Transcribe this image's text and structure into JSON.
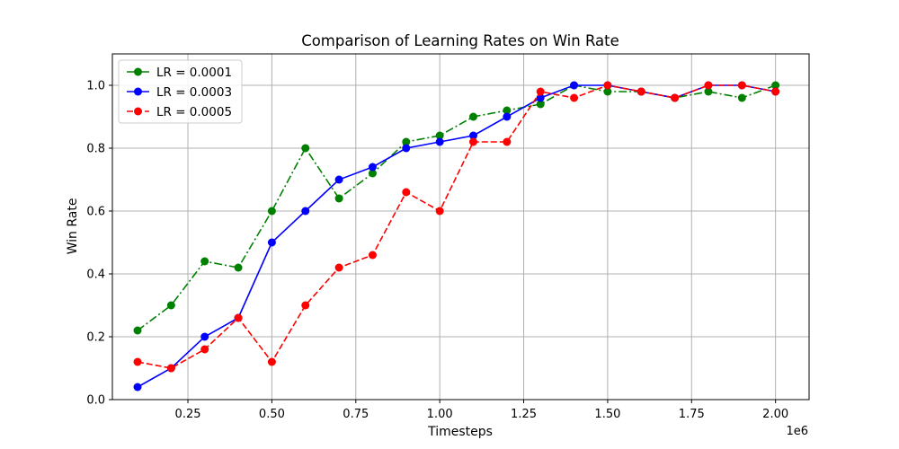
{
  "chart_data": {
    "type": "line",
    "title": "Comparison of Learning Rates on Win Rate",
    "xlabel": "Timesteps",
    "ylabel": "Win Rate",
    "x_offset_label": "1e6",
    "xlim": [
      25000,
      2100000
    ],
    "ylim": [
      0.0,
      1.1
    ],
    "grid": true,
    "legend_position": "upper-left",
    "x_ticks": [
      250000,
      500000,
      750000,
      1000000,
      1250000,
      1500000,
      1750000,
      2000000
    ],
    "x_tick_labels": [
      "0.25",
      "0.50",
      "0.75",
      "1.00",
      "1.25",
      "1.50",
      "1.75",
      "2.00"
    ],
    "y_ticks": [
      0.0,
      0.2,
      0.4,
      0.6,
      0.8,
      1.0
    ],
    "y_tick_labels": [
      "0.0",
      "0.2",
      "0.4",
      "0.6",
      "0.8",
      "1.0"
    ],
    "x": [
      100000,
      200000,
      300000,
      400000,
      500000,
      600000,
      700000,
      800000,
      900000,
      1000000,
      1100000,
      1200000,
      1300000,
      1400000,
      1500000,
      1600000,
      1700000,
      1800000,
      1900000,
      2000000
    ],
    "series": [
      {
        "name": "LR = 0.0001",
        "color": "#008000",
        "line_style": "dashdot",
        "marker": "circle",
        "values": [
          0.22,
          0.3,
          0.44,
          0.42,
          0.6,
          0.8,
          0.64,
          0.72,
          0.82,
          0.84,
          0.9,
          0.92,
          0.94,
          1.0,
          0.98,
          0.98,
          0.96,
          0.98,
          0.96,
          1.0
        ]
      },
      {
        "name": "LR = 0.0003",
        "color": "#0000ff",
        "line_style": "solid",
        "marker": "circle",
        "values": [
          0.04,
          0.1,
          0.2,
          0.26,
          0.5,
          0.6,
          0.7,
          0.74,
          0.8,
          0.82,
          0.84,
          0.9,
          0.96,
          1.0,
          1.0,
          0.98,
          0.96,
          1.0,
          1.0,
          0.98
        ]
      },
      {
        "name": "LR = 0.0005",
        "color": "#ff0000",
        "line_style": "dashed",
        "marker": "circle",
        "values": [
          0.12,
          0.1,
          0.16,
          0.26,
          0.12,
          0.3,
          0.42,
          0.46,
          0.66,
          0.6,
          0.82,
          0.82,
          0.98,
          0.96,
          1.0,
          0.98,
          0.96,
          1.0,
          1.0,
          0.98
        ]
      }
    ]
  }
}
